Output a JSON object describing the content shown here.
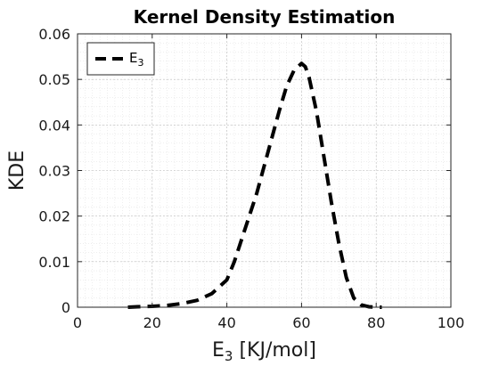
{
  "chart_data": {
    "type": "line",
    "title": "Kernel Density Estimation",
    "xlabel": {
      "base": "E",
      "sub": "3",
      "rest": " [KJ/mol]"
    },
    "ylabel": "KDE",
    "xlim": [
      0,
      100
    ],
    "ylim": [
      0,
      0.06
    ],
    "x_ticks": [
      0,
      20,
      40,
      60,
      80,
      100
    ],
    "x_tick_labels": [
      "0",
      "20",
      "40",
      "60",
      "80",
      "100"
    ],
    "y_ticks": [
      0,
      0.01,
      0.02,
      0.03,
      0.04,
      0.05,
      0.06
    ],
    "y_tick_labels": [
      "0",
      "0.01",
      "0.02",
      "0.03",
      "0.04",
      "0.05",
      "0.06"
    ],
    "grid": true,
    "minor_grid": true,
    "legend_position": "top-left",
    "series": [
      {
        "name": {
          "base": "E",
          "sub": "3"
        },
        "style": "dashed",
        "color": "#000000",
        "x": [
          13.5,
          16,
          20,
          24,
          28,
          32,
          36,
          40,
          42,
          44,
          46,
          48,
          50,
          52,
          54,
          56,
          58,
          60,
          61,
          62,
          64,
          66,
          68,
          70,
          72,
          74,
          76,
          78,
          80,
          81.5
        ],
        "y": [
          0.0,
          0.0001,
          0.0002,
          0.0004,
          0.0008,
          0.0015,
          0.003,
          0.006,
          0.01,
          0.015,
          0.02,
          0.025,
          0.031,
          0.037,
          0.043,
          0.0485,
          0.052,
          0.0535,
          0.0528,
          0.0505,
          0.043,
          0.033,
          0.023,
          0.014,
          0.0065,
          0.002,
          0.0005,
          0.0001,
          0.0,
          0.0
        ]
      }
    ]
  }
}
